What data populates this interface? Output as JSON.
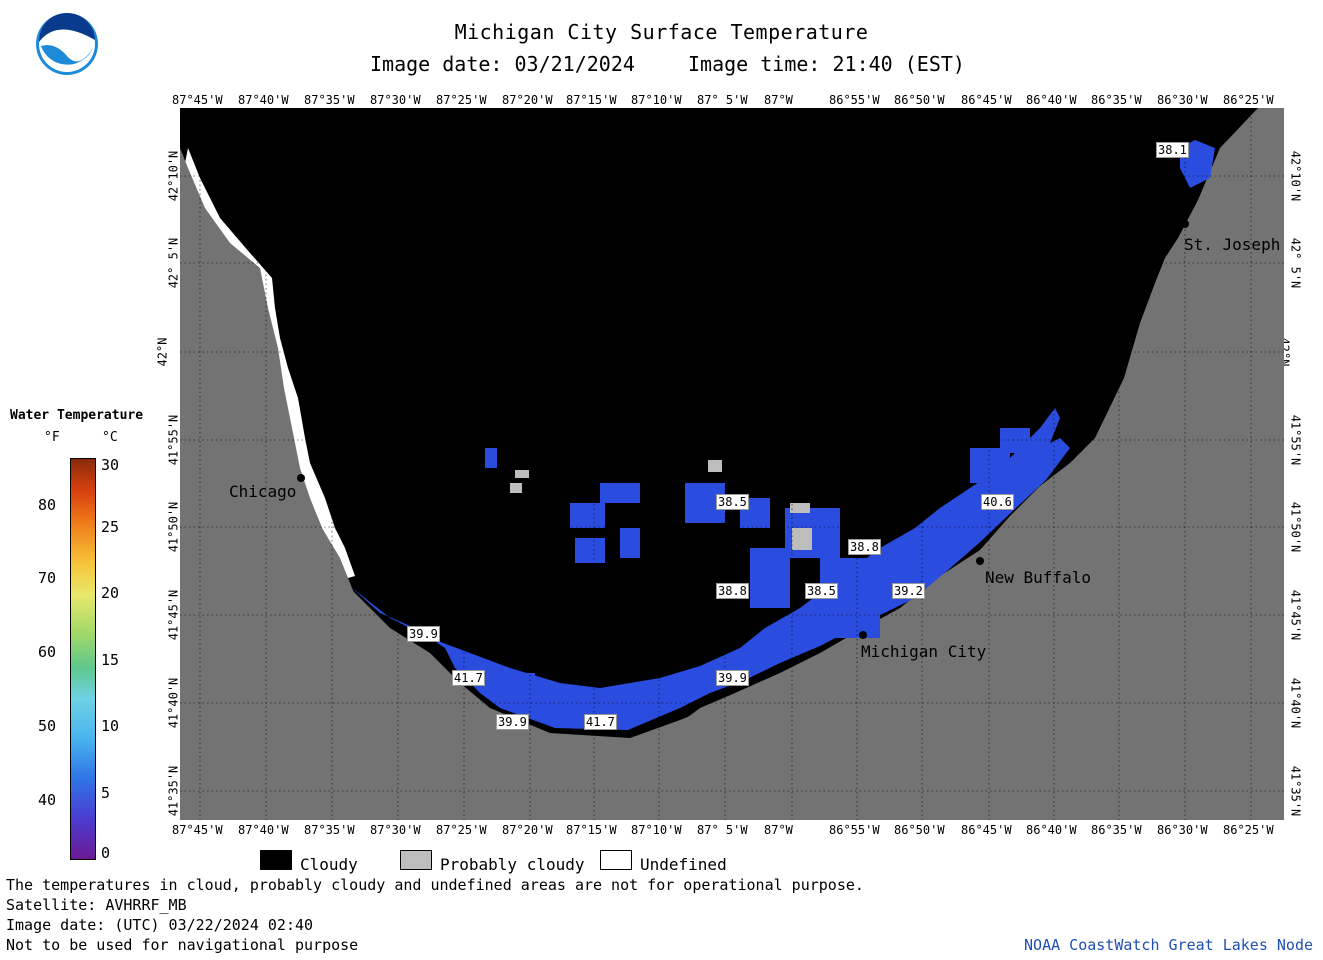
{
  "title": "Michigan City Surface Temperature",
  "subtitle_date": "Image date: 03/21/2024",
  "subtitle_time": "Image time: 21:40 (EST)",
  "lon_labels": [
    "87°45'W",
    "87°40'W",
    "87°35'W",
    "87°30'W",
    "87°25'W",
    "87°20'W",
    "87°15'W",
    "87°10'W",
    "87° 5'W",
    "87°W",
    "86°55'W",
    "86°50'W",
    "86°45'W",
    "86°40'W",
    "86°35'W",
    "86°30'W",
    "86°25'W"
  ],
  "lat_labels": [
    "42°10'N",
    "42° 5'N",
    "42°N",
    "41°55'N",
    "41°50'N",
    "41°45'N",
    "41°40'N",
    "41°35'N"
  ],
  "cities": {
    "chicago": "Chicago",
    "st_joseph": "St. Joseph",
    "new_buffalo": "New Buffalo",
    "michigan_city": "Michigan City"
  },
  "temp_labels": [
    "38.1",
    "38.5",
    "40.6",
    "38.8",
    "38.8",
    "38.5",
    "39.2",
    "39.9",
    "41.7",
    "39.9",
    "41.7",
    "39.9"
  ],
  "legend": {
    "title": "Water Temperature",
    "unit_f": "°F",
    "unit_c": "°C",
    "f_ticks": [
      "80",
      "70",
      "60",
      "50",
      "40"
    ],
    "c_ticks": [
      "30",
      "25",
      "20",
      "15",
      "10",
      "5",
      "0"
    ]
  },
  "key": {
    "cloudy": "Cloudy",
    "probably_cloudy": "Probably cloudy",
    "undefined": "Undefined"
  },
  "footer": {
    "line1": "The temperatures in cloud, probably cloudy and undefined areas are not for operational purpose.",
    "line2": "Satellite: AVHRRF_MB",
    "line3": "Image date: (UTC) 03/22/2024  02:40",
    "line4": "Not to be used for navigational purpose",
    "credit": "NOAA CoastWatch Great Lakes Node"
  },
  "logo_text": "NOAA",
  "colors": {
    "land": "#737373",
    "cloud": "#000000",
    "water": "#2a4de0",
    "prob_cloud": "#bdbdbd",
    "undefined": "#ffffff",
    "credit": "#1f4fb5"
  }
}
